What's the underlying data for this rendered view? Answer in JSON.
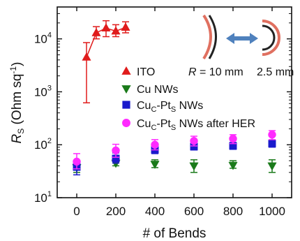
{
  "chart_data": {
    "type": "scatter",
    "xlabel": "# of Bends",
    "ylabel_main": "R",
    "ylabel_sub": "S",
    "ylabel_unit": " (Ohm sq",
    "ylabel_unit_exp": "-1",
    "ylabel_unit_close": ")",
    "xlim": [
      -100,
      1100
    ],
    "ylim": [
      10,
      40000
    ],
    "yscale": "log",
    "x_ticks": [
      0,
      200,
      400,
      600,
      800,
      1000
    ],
    "x_tick_labels": [
      "0",
      "200",
      "400",
      "600",
      "800",
      "1000"
    ],
    "y_ticks": [
      10,
      100,
      1000,
      10000
    ],
    "y_tick_labels": [
      {
        "base": "10",
        "exp": "1"
      },
      {
        "base": "10",
        "exp": "2"
      },
      {
        "base": "10",
        "exp": "3"
      },
      {
        "base": "10",
        "exp": "4"
      }
    ],
    "legend_position": "center-right",
    "series": [
      {
        "name": "ITO",
        "marker": "triangle-up",
        "color": "#e01b1b",
        "connected": true,
        "points": [
          {
            "x": 50,
            "y": 4500,
            "lo": 620,
            "hi": 8500
          },
          {
            "x": 100,
            "y": 13000,
            "lo": 10000,
            "hi": 17000
          },
          {
            "x": 150,
            "y": 16000,
            "lo": 11000,
            "hi": 22000
          },
          {
            "x": 200,
            "y": 14000,
            "lo": 11000,
            "hi": 18500
          },
          {
            "x": 250,
            "y": 16500,
            "lo": 13000,
            "hi": 21000
          }
        ]
      },
      {
        "name": "Cu NWs",
        "marker": "triangle-down",
        "color": "#1a7a1a",
        "connected": false,
        "points": [
          {
            "x": 0,
            "y": 37,
            "lo": 30,
            "hi": 45
          },
          {
            "x": 200,
            "y": 45,
            "lo": 40,
            "hi": 52
          },
          {
            "x": 400,
            "y": 43,
            "lo": 37,
            "hi": 52
          },
          {
            "x": 600,
            "y": 40,
            "lo": 30,
            "hi": 52
          },
          {
            "x": 800,
            "y": 41,
            "lo": 36,
            "hi": 50
          },
          {
            "x": 1000,
            "y": 40,
            "lo": 30,
            "hi": 52
          }
        ]
      },
      {
        "name": "CuC-PtS NWs",
        "label_parts": [
          "Cu",
          "C",
          "-Pt",
          "S",
          " NWs"
        ],
        "marker": "square",
        "color": "#1a1acc",
        "connected": false,
        "points": [
          {
            "x": 0,
            "y": 38,
            "lo": 27,
            "hi": 50
          },
          {
            "x": 200,
            "y": 55,
            "lo": 45,
            "hi": 70
          },
          {
            "x": 400,
            "y": 80,
            "lo": 68,
            "hi": 95
          },
          {
            "x": 600,
            "y": 92,
            "lo": 80,
            "hi": 108
          },
          {
            "x": 800,
            "y": 95,
            "lo": 82,
            "hi": 110
          },
          {
            "x": 1000,
            "y": 105,
            "lo": 90,
            "hi": 122
          }
        ]
      },
      {
        "name": "CuC-PtS NWs after HER",
        "label_parts": [
          "Cu",
          "C",
          "-Pt",
          "S",
          " NWs after HER"
        ],
        "marker": "circle",
        "color": "#ff2aff",
        "connected": false,
        "points": [
          {
            "x": 0,
            "y": 48,
            "lo": 35,
            "hi": 68
          },
          {
            "x": 200,
            "y": 78,
            "lo": 58,
            "hi": 102
          },
          {
            "x": 400,
            "y": 100,
            "lo": 80,
            "hi": 125
          },
          {
            "x": 600,
            "y": 118,
            "lo": 95,
            "hi": 145
          },
          {
            "x": 800,
            "y": 130,
            "lo": 105,
            "hi": 155
          },
          {
            "x": 1000,
            "y": 155,
            "lo": 125,
            "hi": 185
          }
        ]
      }
    ],
    "inset": {
      "label_r": "R",
      "label_eq": " = 10 mm",
      "label_small": "2.5 mm",
      "arrow_color": "#4f81bd",
      "arc_outer_color": "#e07060",
      "arc_inner_color": "#222222"
    }
  }
}
